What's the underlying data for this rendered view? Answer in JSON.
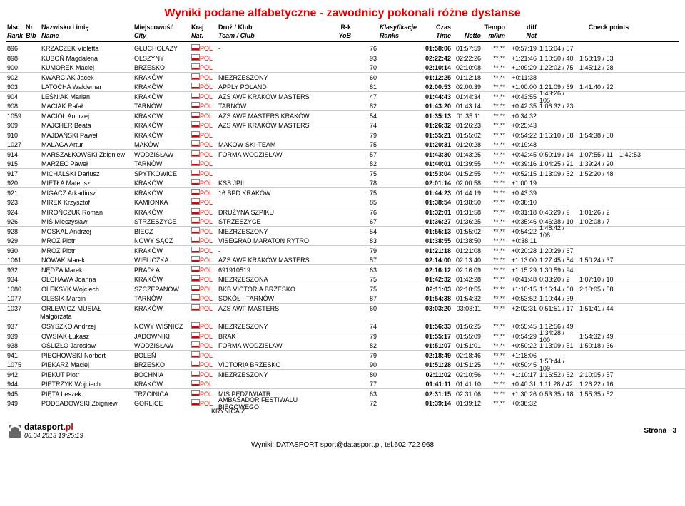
{
  "title": "Wyniki podane alfabetyczne - zawodnicy pokonali różne dystanse",
  "headers": {
    "row1": {
      "msc": "Msc",
      "nr": "Nr",
      "name": "Nazwisko i imię",
      "city": "Miejscowość",
      "kraj": "Kraj",
      "team": "Druż / Klub",
      "rk": "R-k",
      "ranks": "Klasyfikacje",
      "czas": "Czas",
      "tempo": "Tempo",
      "diff": "diff",
      "check": "Check points"
    },
    "row2": {
      "msc": "Rank",
      "nr": "Bib",
      "name": "Name",
      "city": "City",
      "kraj": "Nat.",
      "team": "Team / Club",
      "rk": "YoB",
      "ranks": "Ranks",
      "czas": "Time",
      "netto": "Netto",
      "tempo": "m/km",
      "diff": "Net"
    }
  },
  "rows": [
    {
      "msc": "896",
      "name": "KRZACZEK Violetta",
      "city": "GŁUCHOŁAZY",
      "kraj": "POL",
      "team": "-",
      "yob": "76",
      "czas": "01:58:06",
      "netto": "01:57:59",
      "tempo": "**.**",
      "diff": "+0:57:19",
      "chk1": "1:16:04 / 57"
    },
    {
      "msc": "898",
      "name": "KUBOŃ Magdalena",
      "city": "OLSZYNY",
      "kraj": "POL",
      "team": "",
      "yob": "93",
      "czas": "02:22:42",
      "netto": "02:22:26",
      "tempo": "**.**",
      "diff": "+1:21:46",
      "chk1": "1:10:50 / 40",
      "chk2": "1:58:19 / 53"
    },
    {
      "msc": "900",
      "name": "KUMOREK Maciej",
      "city": "BRZESKO",
      "kraj": "POL",
      "team": "",
      "yob": "70",
      "czas": "02:10:14",
      "netto": "02:10:08",
      "tempo": "**.**",
      "diff": "+1:09:29",
      "chk1": "1:22:02 / 75",
      "chk2": "1:45:12 / 28"
    },
    {
      "msc": "902",
      "name": "KWARCIAK Jacek",
      "city": "KRAKÓW",
      "kraj": "POL",
      "team": "NIEZRZESZONY",
      "yob": "60",
      "czas": "01:12:25",
      "netto": "01:12:18",
      "tempo": "**.**",
      "diff": "+0:11:38"
    },
    {
      "msc": "903",
      "name": "LATOCHA Waldemar",
      "city": "KRAKÓW",
      "kraj": "POL",
      "team": "APPLY POLAND",
      "yob": "81",
      "czas": "02:00:53",
      "netto": "02:00:39",
      "tempo": "**.**",
      "diff": "+1:00:00",
      "chk1": "1:21:09 / 69",
      "chk2": "1:41:40 / 22"
    },
    {
      "msc": "904",
      "name": "LEŚNIAK Marian",
      "city": "KRAKÓW",
      "kraj": "POL",
      "team": "AZS AWF KRAKÓW MASTERS",
      "yob": "47",
      "czas": "01:44:43",
      "netto": "01:44:34",
      "tempo": "**.**",
      "diff": "+0:43:55",
      "chk1": "1:43:26 / 105"
    },
    {
      "msc": "908",
      "name": "MACIAK Rafał",
      "city": "TARNÓW",
      "kraj": "POL",
      "team": "TARNÓW",
      "yob": "82",
      "czas": "01:43:20",
      "netto": "01:43:14",
      "tempo": "**.**",
      "diff": "+0:42:35",
      "chk1": "1:06:32 / 23"
    },
    {
      "msc": "1059",
      "name": "MACIOŁ Andrzej",
      "city": "KRAKOW",
      "kraj": "POL",
      "team": "AZS AWF MASTERS KRAKÓW",
      "yob": "54",
      "czas": "01:35:13",
      "netto": "01:35:11",
      "tempo": "**.**",
      "diff": "+0:34:32"
    },
    {
      "msc": "909",
      "name": "MAJCHER Beata",
      "city": "KRAKÓW",
      "kraj": "POL",
      "team": "AZS AWF KRAKÓW MASTERS",
      "yob": "74",
      "czas": "01:26:32",
      "netto": "01:26:23",
      "tempo": "**.**",
      "diff": "+0:25:43"
    },
    {
      "msc": "910",
      "name": "MAJDAŃSKI Paweł",
      "city": "KRAKÓW",
      "kraj": "POL",
      "team": "",
      "yob": "79",
      "czas": "01:55:21",
      "netto": "01:55:02",
      "tempo": "**.**",
      "diff": "+0:54:22",
      "chk1": "1:16:10 / 58",
      "chk2": "1:54:38 / 50"
    },
    {
      "msc": "1027",
      "name": "MALAGA Artur",
      "city": "MAKÓW",
      "kraj": "POL",
      "team": "MAKOW-SKI-TEAM",
      "yob": "75",
      "czas": "01:20:31",
      "netto": "01:20:28",
      "tempo": "**.**",
      "diff": "+0:19:48"
    },
    {
      "msc": "914",
      "name": "MARSZAŁKOWSKI Zbigniew",
      "city": "WODZISŁAW",
      "kraj": "POL",
      "team": "FORMA WODZISŁAW",
      "yob": "57",
      "czas": "01:43:30",
      "netto": "01:43:25",
      "tempo": "**.**",
      "diff": "+0:42:45",
      "chk1": "0:50:19 / 14",
      "chk2": "1:07:55 / 11",
      "chk3": "1:42:53"
    },
    {
      "msc": "915",
      "name": "MARZEC Paweł",
      "city": "TARNÓW",
      "kraj": "POL",
      "team": "",
      "yob": "82",
      "czas": "01:40:01",
      "netto": "01:39:55",
      "tempo": "**.**",
      "diff": "+0:39:16",
      "chk1": "1:04:25 / 21",
      "chk2": "1:39:24 / 20"
    },
    {
      "msc": "917",
      "name": "MICHALSKI Dariusz",
      "city": "SPYTKOWICE",
      "kraj": "POL",
      "team": "",
      "yob": "75",
      "czas": "01:53:04",
      "netto": "01:52:55",
      "tempo": "**.**",
      "diff": "+0:52:15",
      "chk1": "1:13:09 / 52",
      "chk2": "1:52:20 / 48"
    },
    {
      "msc": "920",
      "name": "MIETŁA Mateusz",
      "city": "KRAKÓW",
      "kraj": "POL",
      "team": "KSS JPII",
      "yob": "78",
      "czas": "02:01:14",
      "netto": "02:00:58",
      "tempo": "**.**",
      "diff": "+1:00:19"
    },
    {
      "msc": "921",
      "name": "MIGACZ Arkadiusz",
      "city": "KRAKÓW",
      "kraj": "POL",
      "team": "16 BPD KRAKÓW",
      "yob": "75",
      "czas": "01:44:23",
      "netto": "01:44:19",
      "tempo": "**.**",
      "diff": "+0:43:39"
    },
    {
      "msc": "923",
      "name": "MIREK Krzysztof",
      "city": "KAMIONKA",
      "kraj": "POL",
      "team": "",
      "yob": "85",
      "czas": "01:38:54",
      "netto": "01:38:50",
      "tempo": "**.**",
      "diff": "+0:38:10"
    },
    {
      "msc": "924",
      "name": "MIROŃCZUK Roman",
      "city": "KRAKÓW",
      "kraj": "POL",
      "team": "DRUŻYNA SZPIKU",
      "yob": "76",
      "czas": "01:32:01",
      "netto": "01:31:58",
      "tempo": "**.**",
      "diff": "+0:31:18",
      "chk1": "0:46:29 / 9",
      "chk2": "1:01:26 / 2"
    },
    {
      "msc": "926",
      "name": "MIŚ Mieczysław",
      "city": "STRZESZYCE",
      "kraj": "POL",
      "team": "STRZESZYCE",
      "yob": "67",
      "czas": "01:36:27",
      "netto": "01:36:25",
      "tempo": "**.**",
      "diff": "+0:35:46",
      "chk1": "0:46:38 / 10",
      "chk2": "1:02:08 / 7"
    },
    {
      "msc": "928",
      "name": "MOSKAL Andrzej",
      "city": "BIECZ",
      "kraj": "POL",
      "team": "NIEZRZESZONY",
      "yob": "54",
      "czas": "01:55:13",
      "netto": "01:55:02",
      "tempo": "**.**",
      "diff": "+0:54:22",
      "chk1": "1:48:42 / 108"
    },
    {
      "msc": "929",
      "name": "MRÓZ Piotr",
      "city": "NOWY SĄCZ",
      "kraj": "POL",
      "team": "VISEGRAD MARATON RYTRO",
      "yob": "83",
      "czas": "01:38:55",
      "netto": "01:38:50",
      "tempo": "**.**",
      "diff": "+0:38:11"
    },
    {
      "msc": "930",
      "name": "MRÓZ Piotr",
      "city": "KRAKÓW",
      "kraj": "POL",
      "team": "-",
      "yob": "79",
      "czas": "01:21:18",
      "netto": "01:21:08",
      "tempo": "**.**",
      "diff": "+0:20:28",
      "chk1": "1:20:29 / 67"
    },
    {
      "msc": "1061",
      "name": "NOWAK Marek",
      "city": "WIELICZKA",
      "kraj": "POL",
      "team": "AZS AWF KRAKÓW MASTERS",
      "yob": "57",
      "czas": "02:14:00",
      "netto": "02:13:40",
      "tempo": "**.**",
      "diff": "+1:13:00",
      "chk1": "1:27:45 / 84",
      "chk2": "1:50:24 / 37"
    },
    {
      "msc": "932",
      "name": "NĘDZA Marek",
      "city": "PRADŁA",
      "kraj": "POL",
      "team": "691910519",
      "yob": "63",
      "czas": "02:16:12",
      "netto": "02:16:09",
      "tempo": "**.**",
      "diff": "+1:15:29",
      "chk1": "1:30:59 / 94"
    },
    {
      "msc": "934",
      "name": "OLCHAWA Joanna",
      "city": "KRAKÓW",
      "kraj": "POL",
      "team": "NIEZRZESZONA",
      "yob": "75",
      "czas": "01:42:32",
      "netto": "01:42:28",
      "tempo": "**.**",
      "diff": "+0:41:48",
      "chk1": "0:33:20 / 2",
      "chk2": "1:07:10 / 10"
    },
    {
      "msc": "1080",
      "name": "OLEKSYK Wojciech",
      "city": "SZCZEPANÓW",
      "kraj": "POL",
      "team": "BKB VICTORIA BRZESKO",
      "yob": "75",
      "czas": "02:11:03",
      "netto": "02:10:55",
      "tempo": "**.**",
      "diff": "+1:10:15",
      "chk1": "1:16:14 / 60",
      "chk2": "2:10:05 / 58"
    },
    {
      "msc": "1077",
      "name": "OLESIK Marcin",
      "city": "TARNÓW",
      "kraj": "POL",
      "team": "SOKÓŁ - TARNÓW",
      "yob": "87",
      "czas": "01:54:38",
      "netto": "01:54:32",
      "tempo": "**.**",
      "diff": "+0:53:52",
      "chk1": "1:10:44 / 39"
    },
    {
      "msc": "1037",
      "name": "ORLEWICZ-MUSIAŁ",
      "name2": "Małgorzata",
      "city": "KRAKÓW",
      "kraj": "POL",
      "team": "AZS AWF MASTERS",
      "yob": "60",
      "czas": "03:03:20",
      "netto": "03:03:11",
      "tempo": "**.**",
      "diff": "+2:02:31",
      "chk1": "0:51:51 / 17",
      "chk2": "1:51:41 / 44"
    },
    {
      "msc": "937",
      "name": "OSYSZKO Andrzej",
      "city": "NOWY WIŚNICZ",
      "kraj": "POL",
      "team": "NIEZRZESZONY",
      "yob": "74",
      "czas": "01:56:33",
      "netto": "01:56:25",
      "tempo": "**.**",
      "diff": "+0:55:45",
      "chk1": "1:12:56 / 49"
    },
    {
      "msc": "939",
      "name": "OWSIAK Łukasz",
      "city": "JADOWNIKI",
      "kraj": "POL",
      "team": "BRAK",
      "yob": "79",
      "czas": "01:55:17",
      "netto": "01:55:09",
      "tempo": "**.**",
      "diff": "+0:54:29",
      "chk1": "1:34:28 / 100",
      "chk2": "1:54:32 / 49"
    },
    {
      "msc": "938",
      "name": "OŚLIZŁO Jarosław",
      "city": "WODZISŁAW",
      "kraj": "POL",
      "team": "FORMA WODZISŁAW",
      "yob": "82",
      "czas": "01:51:07",
      "netto": "01:51:01",
      "tempo": "**.**",
      "diff": "+0:50:22",
      "chk1": "1:13:09 / 51",
      "chk2": "1:50:18 / 36"
    },
    {
      "msc": "941",
      "name": "PIECHOWSKI Norbert",
      "city": "BOLEŃ",
      "kraj": "POL",
      "team": "",
      "yob": "79",
      "czas": "02:18:49",
      "netto": "02:18:46",
      "tempo": "**.**",
      "diff": "+1:18:06"
    },
    {
      "msc": "1075",
      "name": "PIEKARZ Maciej",
      "city": "BRZESKO",
      "kraj": "POL",
      "team": "VICTORIA BRZESKO",
      "yob": "90",
      "czas": "01:51:28",
      "netto": "01:51:25",
      "tempo": "**.**",
      "diff": "+0:50:45",
      "chk1": "1:50:44 / 109"
    },
    {
      "msc": "942",
      "name": "PIEKUT Piotr",
      "city": "BOCHNIA",
      "kraj": "POL",
      "team": "NIEZRZESZONY",
      "yob": "80",
      "czas": "02:11:02",
      "netto": "02:10:56",
      "tempo": "**.**",
      "diff": "+1:10:17",
      "chk1": "1:16:52 / 62",
      "chk2": "2:10:05 / 57"
    },
    {
      "msc": "944",
      "name": "PIETRZYK Wojciech",
      "city": "KRAKÓW",
      "kraj": "POL",
      "team": "",
      "yob": "77",
      "czas": "01:41:11",
      "netto": "01:41:10",
      "tempo": "**.**",
      "diff": "+0:40:31",
      "chk1": "1:11:28 / 42",
      "chk2": "1:26:22 / 16"
    },
    {
      "msc": "945",
      "name": "PIĘTA Leszek",
      "city": "TRZCINICA",
      "kraj": "POL",
      "team": "MIŚ PĘDZIWIATR",
      "yob": "63",
      "czas": "02:31:15",
      "netto": "02:31:06",
      "tempo": "**.**",
      "diff": "+1:30:26",
      "chk1": "0:53:35 / 18",
      "chk2": "1:55:35 / 52"
    },
    {
      "msc": "949",
      "name": "PODSADOWSKI Zbigniew",
      "city": "GORLICE",
      "kraj": "POL",
      "team": "AMBASADOR FESTIWALU BIEGOWEGO",
      "team2": "KRYNICA Z",
      "yob": "72",
      "czas": "01:39:14",
      "netto": "01:39:12",
      "tempo": "**.**",
      "diff": "+0:38:32"
    }
  ],
  "footer": {
    "brand1": "datasport",
    "brand2": ".pl",
    "ts": "06.04.2013 19:25:19",
    "page_label": "Strona",
    "page_num": "3",
    "line2": "Wyniki: DATASPORT sport@datasport.pl, tel.602 722 968"
  }
}
